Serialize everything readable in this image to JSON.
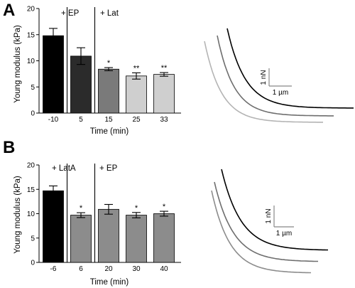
{
  "chart_data": [
    {
      "type": "bar",
      "panel_label": "A",
      "categories": [
        "-10",
        "5",
        "15",
        "25",
        "33"
      ],
      "values": [
        14.8,
        10.9,
        8.4,
        7.1,
        7.4
      ],
      "errors": [
        1.4,
        1.6,
        0.3,
        0.6,
        0.35
      ],
      "bar_colors": [
        "#000000",
        "#2b2b2b",
        "#7a7a7a",
        "#cfcfcf",
        "#cfcfcf"
      ],
      "significance": [
        "",
        "",
        "*",
        "**",
        "**"
      ],
      "annotations": [
        {
          "after_index": 0,
          "text": "+ EP"
        },
        {
          "after_index": 1,
          "text": "+ Lat"
        }
      ],
      "xlabel": "Time (min)",
      "ylabel": "Young modulus (kPa)",
      "ylim": [
        0,
        20
      ],
      "yticks": [
        0,
        5,
        10,
        15,
        20
      ],
      "grid": false
    },
    {
      "type": "bar",
      "panel_label": "B",
      "categories": [
        "-6",
        "6",
        "20",
        "30",
        "40"
      ],
      "values": [
        14.7,
        9.7,
        10.9,
        9.7,
        10.0
      ],
      "errors": [
        1.0,
        0.5,
        1.0,
        0.55,
        0.5
      ],
      "bar_colors": [
        "#000000",
        "#8c8c8c",
        "#8c8c8c",
        "#8c8c8c",
        "#8c8c8c"
      ],
      "significance": [
        "",
        "*",
        "",
        "*",
        "*"
      ],
      "annotations": [
        {
          "after_index": 0,
          "text": "+ LatA"
        },
        {
          "after_index": 1,
          "text": "+ EP"
        }
      ],
      "xlabel": "Time (min)",
      "ylabel": "Young modulus (kPa)",
      "ylim": [
        0,
        20
      ],
      "yticks": [
        0,
        5,
        10,
        15,
        20
      ],
      "grid": false
    }
  ],
  "curves": [
    {
      "scale_y_label": "1 nN",
      "scale_x_label": "1 µm",
      "traces": [
        {
          "color": "#000000"
        },
        {
          "color": "#6e6e6e"
        },
        {
          "color": "#b4b4b4"
        }
      ]
    },
    {
      "scale_y_label": "1 nN",
      "scale_x_label": "1 µm",
      "traces": [
        {
          "color": "#000000"
        },
        {
          "color": "#6e6e6e"
        },
        {
          "color": "#8c8c8c"
        }
      ]
    }
  ]
}
